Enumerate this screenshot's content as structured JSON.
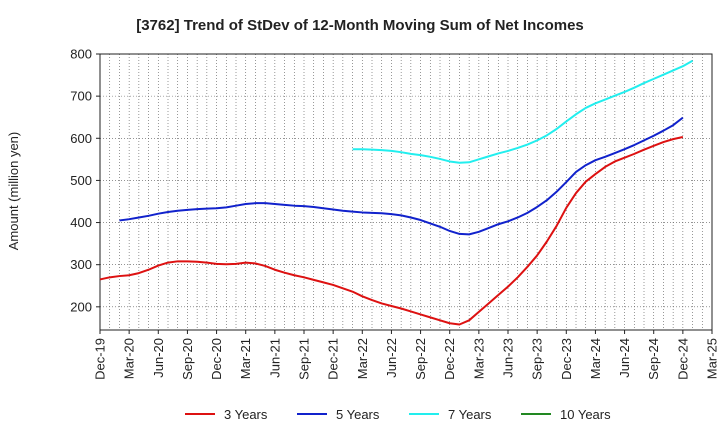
{
  "chart_data": {
    "type": "line",
    "title": "[3762]  Trend of StDev of 12-Month Moving Sum of Net Incomes",
    "xlabel": "",
    "ylabel": "Amount (million yen)",
    "ylim": [
      145,
      800
    ],
    "yticks": [
      200,
      300,
      400,
      500,
      600,
      700,
      800
    ],
    "x_ticks": [
      "Dec-19",
      "Mar-20",
      "Jun-20",
      "Sep-20",
      "Dec-20",
      "Mar-21",
      "Jun-21",
      "Sep-21",
      "Dec-21",
      "Mar-22",
      "Jun-22",
      "Sep-22",
      "Dec-22",
      "Mar-23",
      "Jun-23",
      "Sep-23",
      "Dec-23",
      "Mar-24",
      "Jun-24",
      "Sep-24",
      "Dec-24",
      "Mar-25"
    ],
    "grid": true,
    "legend_position": "bottom",
    "series": [
      {
        "name": "3 Years",
        "color": "#dd1111",
        "points": [
          [
            "Dec-19",
            265
          ],
          [
            "Jan-20",
            270
          ],
          [
            "Feb-20",
            273
          ],
          [
            "Mar-20",
            275
          ],
          [
            "Apr-20",
            280
          ],
          [
            "May-20",
            288
          ],
          [
            "Jun-20",
            298
          ],
          [
            "Jul-20",
            305
          ],
          [
            "Aug-20",
            308
          ],
          [
            "Sep-20",
            308
          ],
          [
            "Oct-20",
            307
          ],
          [
            "Nov-20",
            305
          ],
          [
            "Dec-20",
            302
          ],
          [
            "Jan-21",
            301
          ],
          [
            "Feb-21",
            302
          ],
          [
            "Mar-21",
            305
          ],
          [
            "Apr-21",
            303
          ],
          [
            "May-21",
            297
          ],
          [
            "Jun-21",
            288
          ],
          [
            "Jul-21",
            281
          ],
          [
            "Aug-21",
            275
          ],
          [
            "Sep-21",
            270
          ],
          [
            "Oct-21",
            264
          ],
          [
            "Nov-21",
            258
          ],
          [
            "Dec-21",
            252
          ],
          [
            "Jan-22",
            244
          ],
          [
            "Feb-22",
            236
          ],
          [
            "Mar-22",
            225
          ],
          [
            "Apr-22",
            216
          ],
          [
            "May-22",
            208
          ],
          [
            "Jun-22",
            202
          ],
          [
            "Jul-22",
            196
          ],
          [
            "Aug-22",
            189
          ],
          [
            "Sep-22",
            182
          ],
          [
            "Oct-22",
            175
          ],
          [
            "Nov-22",
            168
          ],
          [
            "Dec-22",
            161
          ],
          [
            "Jan-23",
            158
          ],
          [
            "Feb-23",
            168
          ],
          [
            "Mar-23",
            188
          ],
          [
            "Apr-23",
            208
          ],
          [
            "May-23",
            228
          ],
          [
            "Jun-23",
            248
          ],
          [
            "Jul-23",
            270
          ],
          [
            "Aug-23",
            295
          ],
          [
            "Sep-23",
            322
          ],
          [
            "Oct-23",
            355
          ],
          [
            "Nov-23",
            392
          ],
          [
            "Dec-23",
            435
          ],
          [
            "Jan-24",
            470
          ],
          [
            "Feb-24",
            497
          ],
          [
            "Mar-24",
            515
          ],
          [
            "Apr-24",
            532
          ],
          [
            "May-24",
            545
          ],
          [
            "Jun-24",
            554
          ],
          [
            "Jul-24",
            563
          ],
          [
            "Aug-24",
            573
          ],
          [
            "Sep-24",
            582
          ],
          [
            "Oct-24",
            591
          ],
          [
            "Nov-24",
            598
          ],
          [
            "Dec-24",
            603
          ]
        ]
      },
      {
        "name": "5 Years",
        "color": "#1122cc",
        "points": [
          [
            "Feb-20",
            405
          ],
          [
            "Mar-20",
            408
          ],
          [
            "Apr-20",
            412
          ],
          [
            "May-20",
            416
          ],
          [
            "Jun-20",
            421
          ],
          [
            "Jul-20",
            425
          ],
          [
            "Aug-20",
            428
          ],
          [
            "Sep-20",
            430
          ],
          [
            "Oct-20",
            432
          ],
          [
            "Nov-20",
            433
          ],
          [
            "Dec-20",
            434
          ],
          [
            "Jan-21",
            436
          ],
          [
            "Feb-21",
            440
          ],
          [
            "Mar-21",
            444
          ],
          [
            "Apr-21",
            446
          ],
          [
            "May-21",
            446
          ],
          [
            "Jun-21",
            444
          ],
          [
            "Jul-21",
            442
          ],
          [
            "Aug-21",
            440
          ],
          [
            "Sep-21",
            439
          ],
          [
            "Oct-21",
            437
          ],
          [
            "Nov-21",
            434
          ],
          [
            "Dec-21",
            431
          ],
          [
            "Jan-22",
            428
          ],
          [
            "Feb-22",
            426
          ],
          [
            "Mar-22",
            424
          ],
          [
            "Apr-22",
            423
          ],
          [
            "May-22",
            422
          ],
          [
            "Jun-22",
            420
          ],
          [
            "Jul-22",
            417
          ],
          [
            "Aug-22",
            412
          ],
          [
            "Sep-22",
            406
          ],
          [
            "Oct-22",
            398
          ],
          [
            "Nov-22",
            390
          ],
          [
            "Dec-22",
            380
          ],
          [
            "Jan-23",
            373
          ],
          [
            "Feb-23",
            372
          ],
          [
            "Mar-23",
            378
          ],
          [
            "Apr-23",
            387
          ],
          [
            "May-23",
            396
          ],
          [
            "Jun-23",
            403
          ],
          [
            "Jul-23",
            412
          ],
          [
            "Aug-23",
            423
          ],
          [
            "Sep-23",
            437
          ],
          [
            "Oct-23",
            453
          ],
          [
            "Nov-23",
            473
          ],
          [
            "Dec-23",
            496
          ],
          [
            "Jan-24",
            520
          ],
          [
            "Feb-24",
            536
          ],
          [
            "Mar-24",
            548
          ],
          [
            "Apr-24",
            556
          ],
          [
            "May-24",
            565
          ],
          [
            "Jun-24",
            574
          ],
          [
            "Jul-24",
            584
          ],
          [
            "Aug-24",
            595
          ],
          [
            "Sep-24",
            606
          ],
          [
            "Oct-24",
            618
          ],
          [
            "Nov-24",
            631
          ],
          [
            "Dec-24",
            649
          ]
        ]
      },
      {
        "name": "7 Years",
        "color": "#22eeee",
        "points": [
          [
            "Feb-22",
            574
          ],
          [
            "Mar-22",
            574
          ],
          [
            "Apr-22",
            573
          ],
          [
            "May-22",
            572
          ],
          [
            "Jun-22",
            570
          ],
          [
            "Jul-22",
            567
          ],
          [
            "Aug-22",
            563
          ],
          [
            "Sep-22",
            560
          ],
          [
            "Oct-22",
            556
          ],
          [
            "Nov-22",
            551
          ],
          [
            "Dec-22",
            545
          ],
          [
            "Jan-23",
            542
          ],
          [
            "Feb-23",
            543
          ],
          [
            "Mar-23",
            550
          ],
          [
            "Apr-23",
            557
          ],
          [
            "May-23",
            564
          ],
          [
            "Jun-23",
            570
          ],
          [
            "Jul-23",
            577
          ],
          [
            "Aug-23",
            585
          ],
          [
            "Sep-23",
            595
          ],
          [
            "Oct-23",
            607
          ],
          [
            "Nov-23",
            622
          ],
          [
            "Dec-23",
            640
          ],
          [
            "Jan-24",
            657
          ],
          [
            "Feb-24",
            672
          ],
          [
            "Mar-24",
            683
          ],
          [
            "Apr-24",
            692
          ],
          [
            "May-24",
            701
          ],
          [
            "Jun-24",
            710
          ],
          [
            "Jul-24",
            720
          ],
          [
            "Aug-24",
            731
          ],
          [
            "Sep-24",
            741
          ],
          [
            "Oct-24",
            751
          ],
          [
            "Nov-24",
            761
          ],
          [
            "Dec-24",
            771
          ],
          [
            "Jan-25",
            784
          ]
        ]
      },
      {
        "name": "10 Years",
        "color": "#228822",
        "points": []
      }
    ]
  }
}
